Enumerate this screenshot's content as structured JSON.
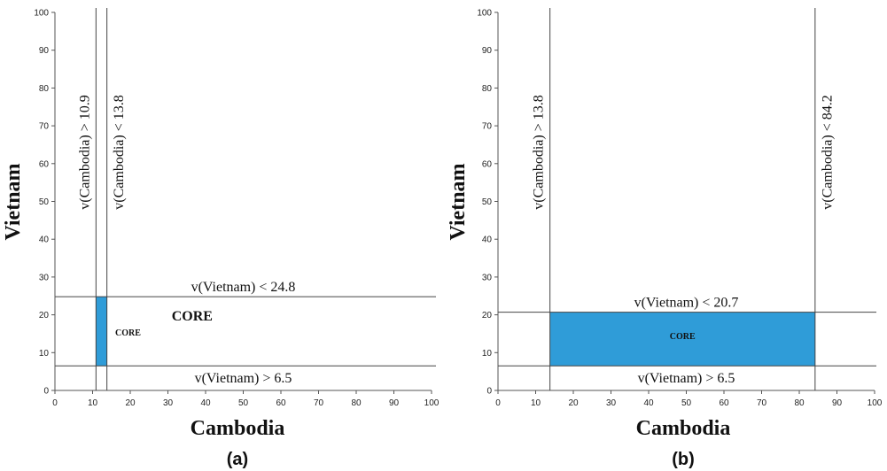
{
  "chart_data": [
    {
      "type": "area",
      "panel_label": "(a)",
      "xlabel": "Cambodia",
      "ylabel": "Vietnam",
      "xlim": [
        0,
        100
      ],
      "ylim": [
        0,
        100
      ],
      "x_ticks": [
        0,
        10,
        20,
        30,
        40,
        50,
        60,
        70,
        80,
        90,
        100
      ],
      "y_ticks": [
        0,
        10,
        20,
        30,
        40,
        50,
        60,
        70,
        80,
        90,
        100
      ],
      "grid": false,
      "core_color": "#2f9cd8",
      "core_region": {
        "x": [
          10.9,
          13.8
        ],
        "y": [
          6.5,
          24.8
        ]
      },
      "core_labels": [
        "CORE",
        "CORE"
      ],
      "constraints": [
        {
          "axis": "x",
          "value": 10.9,
          "label": "v(Cambodia) > 10.9"
        },
        {
          "axis": "x",
          "value": 13.8,
          "label": "v(Cambodia) < 13.8"
        },
        {
          "axis": "y",
          "value": 24.8,
          "label": "v(Vietnam) < 24.8"
        },
        {
          "axis": "y",
          "value": 6.5,
          "label": "v(Vietnam) > 6.5"
        }
      ]
    },
    {
      "type": "area",
      "panel_label": "(b)",
      "xlabel": "Cambodia",
      "ylabel": "Vietnam",
      "xlim": [
        0,
        100
      ],
      "ylim": [
        0,
        100
      ],
      "x_ticks": [
        0,
        10,
        20,
        30,
        40,
        50,
        60,
        70,
        80,
        90,
        100
      ],
      "y_ticks": [
        0,
        10,
        20,
        30,
        40,
        50,
        60,
        70,
        80,
        90,
        100
      ],
      "grid": false,
      "core_color": "#2f9cd8",
      "core_region": {
        "x": [
          13.8,
          84.2
        ],
        "y": [
          6.5,
          20.7
        ]
      },
      "core_labels": [
        "CORE"
      ],
      "constraints": [
        {
          "axis": "x",
          "value": 13.8,
          "label": "v(Cambodia) > 13.8"
        },
        {
          "axis": "x",
          "value": 84.2,
          "label": "v(Cambodia) < 84.2"
        },
        {
          "axis": "y",
          "value": 20.7,
          "label": "v(Vietnam) < 20.7"
        },
        {
          "axis": "y",
          "value": 6.5,
          "label": "v(Vietnam) > 6.5"
        }
      ]
    }
  ]
}
